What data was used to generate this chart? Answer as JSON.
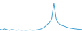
{
  "x": [
    0,
    1,
    2,
    3,
    4,
    5,
    6,
    7,
    8,
    9,
    10,
    11,
    12,
    13,
    14,
    15,
    16,
    17,
    18,
    19,
    20,
    21,
    22,
    23,
    24,
    25,
    26,
    27,
    28,
    29,
    30,
    31,
    32,
    33,
    34,
    35
  ],
  "y": [
    2.5,
    2.2,
    2.8,
    2.3,
    2.0,
    2.4,
    2.2,
    2.0,
    2.2,
    2.0,
    2.1,
    2.0,
    2.1,
    2.2,
    2.0,
    2.1,
    2.3,
    2.5,
    3.0,
    3.8,
    5.0,
    6.5,
    8.5,
    18.0,
    8.5,
    6.0,
    5.0,
    4.5,
    4.0,
    3.5,
    3.2,
    3.0,
    2.8,
    2.6,
    2.5,
    2.4
  ],
  "line_color": "#3b9fd4",
  "background_color": "#ffffff",
  "linewidth": 0.7,
  "ylim": [
    1.5,
    20
  ],
  "xlim": [
    0,
    35
  ]
}
